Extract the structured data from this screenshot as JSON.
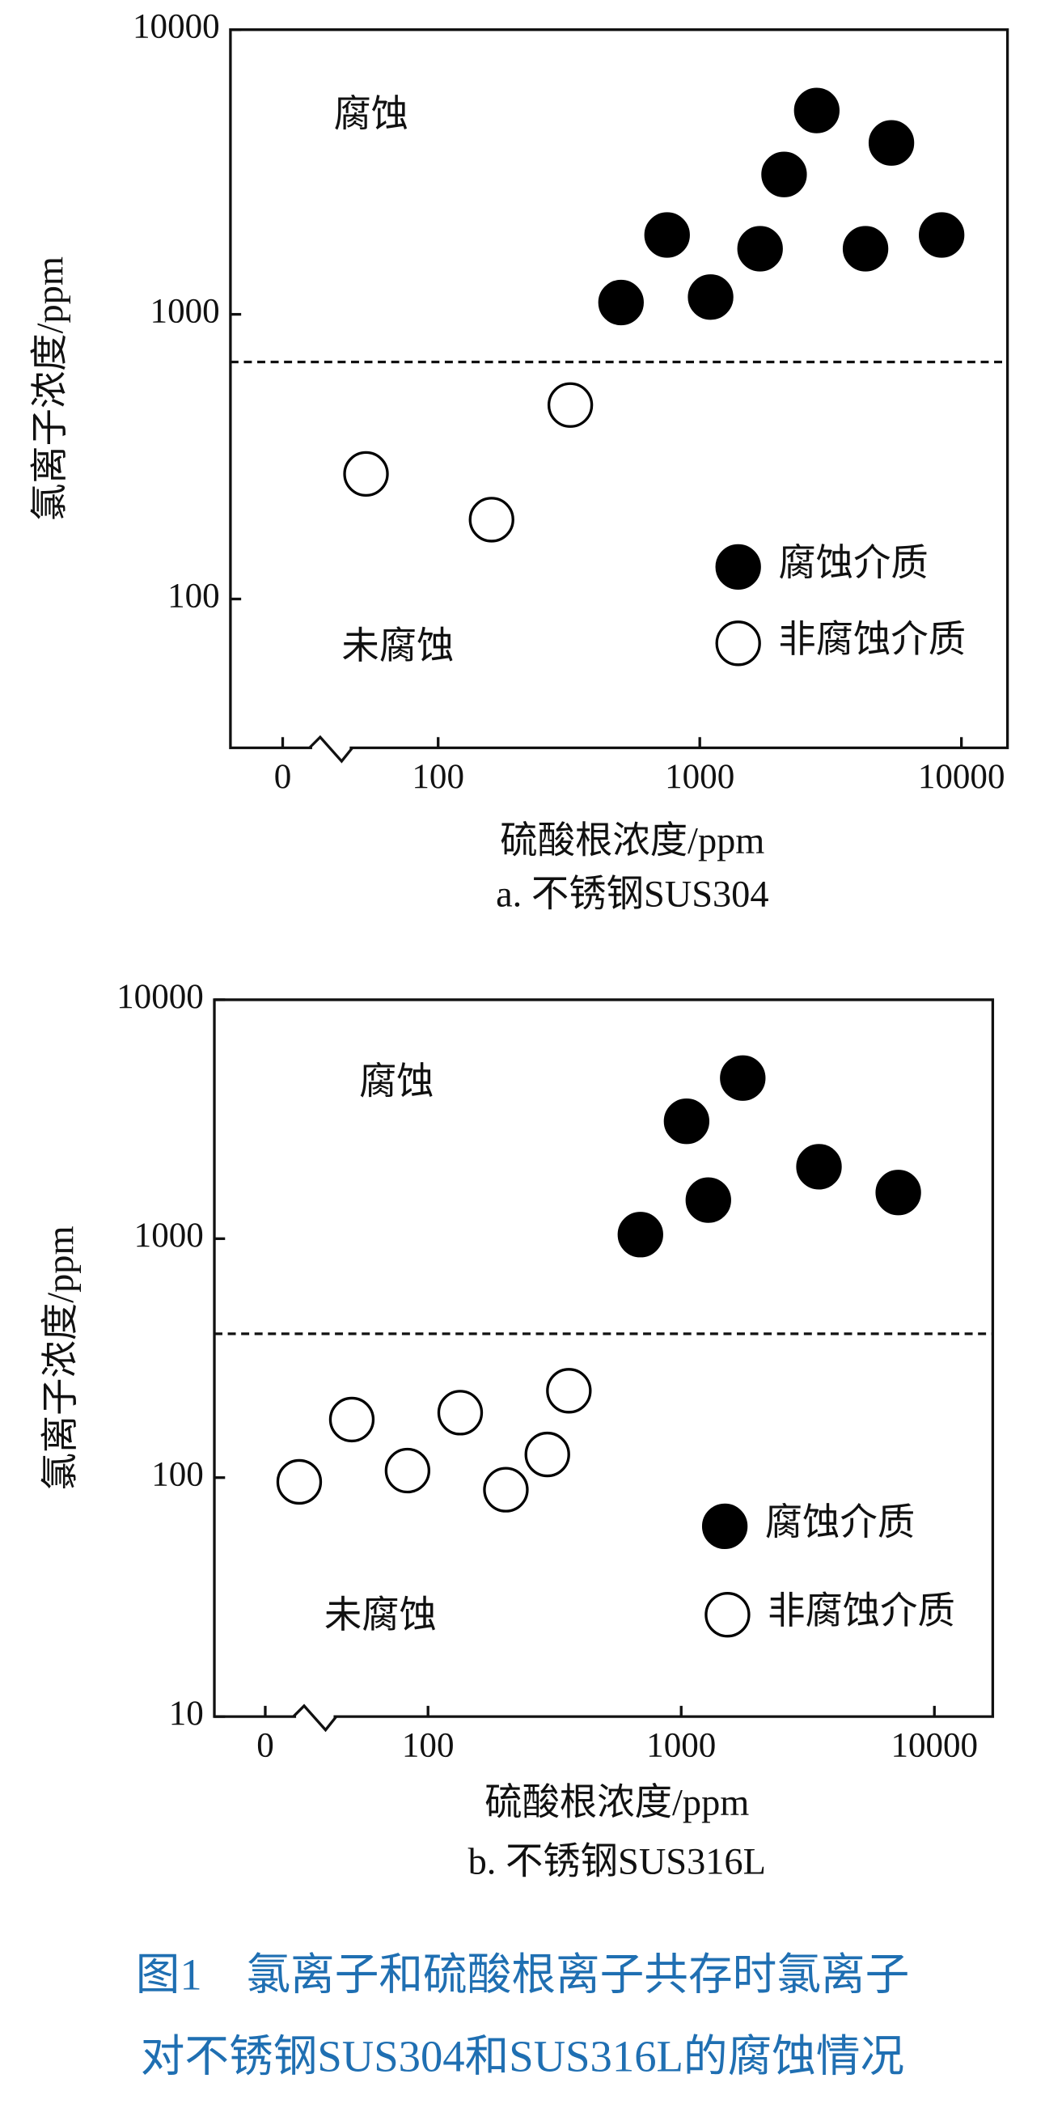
{
  "chart_data": [
    {
      "type": "scatter",
      "x_label": "硫酸根浓度/ppm",
      "y_label": "氯离子浓度/ppm",
      "caption": "a. 不锈钢SUS304",
      "x_scale": "log",
      "y_scale": "log",
      "x_break": true,
      "xlim": [
        35,
        15000
      ],
      "xticks": [
        0,
        100,
        1000,
        10000
      ],
      "ylim": [
        30,
        10000
      ],
      "yticks": [
        100,
        1000,
        10000
      ],
      "threshold": 680,
      "threshold_style": "dashed",
      "annotations": [
        "腐蚀",
        "未腐蚀"
      ],
      "legend": "lower right",
      "series": [
        {
          "name": "腐蚀介质",
          "color": "#000000",
          "marker": "filled",
          "x": [
            500,
            750,
            1100,
            1700,
            2100,
            2800,
            4300,
            5400,
            8400
          ],
          "values": [
            1100,
            1900,
            1150,
            1700,
            3100,
            5200,
            1700,
            4000,
            1900
          ]
        },
        {
          "name": "非腐蚀介质",
          "color": "#000000",
          "marker": "open",
          "x": [
            53,
            160,
            320
          ],
          "values": [
            275,
            190,
            480
          ]
        }
      ]
    },
    {
      "type": "scatter",
      "x_label": "硫酸根浓度/ppm",
      "y_label": "氯离子浓度/ppm",
      "caption": "b. 不锈钢SUS316L",
      "x_scale": "log",
      "y_scale": "log",
      "x_break": true,
      "xlim": [
        28,
        17000
      ],
      "xticks": [
        0,
        100,
        1000,
        10000
      ],
      "ylim": [
        10,
        10000
      ],
      "yticks": [
        10,
        100,
        1000,
        10000
      ],
      "threshold": 400,
      "threshold_style": "dashed",
      "annotations": [
        "腐蚀",
        "未腐蚀"
      ],
      "legend": "lower right",
      "series": [
        {
          "name": "腐蚀介质",
          "color": "#000000",
          "marker": "filled",
          "x": [
            690,
            1050,
            1280,
            1750,
            3500,
            7200
          ],
          "values": [
            1040,
            3100,
            1450,
            4700,
            2000,
            1560
          ]
        },
        {
          "name": "非腐蚀介质",
          "color": "#000000",
          "marker": "open",
          "x": [
            31,
            50,
            83,
            134,
            203,
            296,
            360
          ],
          "values": [
            96,
            175,
            107,
            187,
            89,
            125,
            231
          ]
        }
      ]
    }
  ],
  "figure_caption": {
    "lines": [
      "图1　氯离子和硫酸根离子共存时氯离子",
      "对不锈钢SUS304和SUS316L的腐蚀情况"
    ],
    "color": "#1f6fb2"
  }
}
